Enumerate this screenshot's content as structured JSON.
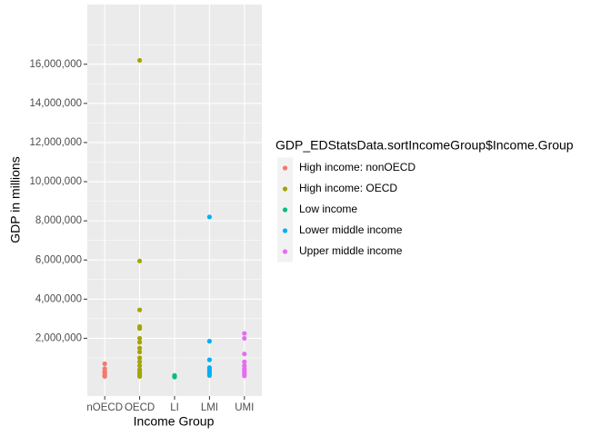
{
  "chart_data": {
    "type": "scatter",
    "x_label": "Income Group",
    "y_label": "GDP in millions",
    "legend_title": "GDP_EDStatsData.sortIncomeGroup$Income.Group",
    "categories": [
      "nOECD",
      "OECD",
      "LI",
      "LMI",
      "UMI"
    ],
    "ylim": [
      -950000,
      19050000
    ],
    "yticks": [
      {
        "value": 2000000,
        "label": "2,000,000"
      },
      {
        "value": 4000000,
        "label": "4,000,000"
      },
      {
        "value": 6000000,
        "label": "6,000,000"
      },
      {
        "value": 8000000,
        "label": "8,000,000"
      },
      {
        "value": 10000000,
        "label": "10,000,000"
      },
      {
        "value": 12000000,
        "label": "12,000,000"
      },
      {
        "value": 14000000,
        "label": "14,000,000"
      },
      {
        "value": 16000000,
        "label": "16,000,000"
      }
    ],
    "grid": true,
    "legend": "right",
    "series": [
      {
        "name": "High income: nonOECD",
        "color": "#F8766D",
        "x": [
          "nOECD",
          "nOECD",
          "nOECD",
          "nOECD",
          "nOECD",
          "nOECD"
        ],
        "values": [
          700000,
          450000,
          300000,
          200000,
          100000,
          50000
        ]
      },
      {
        "name": "High income: OECD",
        "color": "#A3A500",
        "x": [
          "OECD",
          "OECD",
          "OECD",
          "OECD",
          "OECD",
          "OECD",
          "OECD",
          "OECD",
          "OECD",
          "OECD",
          "OECD",
          "OECD",
          "OECD",
          "OECD",
          "OECD",
          "OECD",
          "OECD"
        ],
        "values": [
          16200000,
          5950000,
          3450000,
          2600000,
          2500000,
          2000000,
          1800000,
          1500000,
          1300000,
          1000000,
          800000,
          600000,
          400000,
          300000,
          200000,
          100000,
          50000
        ]
      },
      {
        "name": "Low income",
        "color": "#00BF7D",
        "x": [
          "LI",
          "LI",
          "LI"
        ],
        "values": [
          100000,
          50000,
          20000
        ]
      },
      {
        "name": "Lower middle income",
        "color": "#00B0F6",
        "x": [
          "LMI",
          "LMI",
          "LMI",
          "LMI",
          "LMI",
          "LMI",
          "LMI",
          "LMI"
        ],
        "values": [
          8200000,
          1850000,
          900000,
          500000,
          400000,
          300000,
          200000,
          100000
        ]
      },
      {
        "name": "Upper middle income",
        "color": "#E76BF3",
        "x": [
          "UMI",
          "UMI",
          "UMI",
          "UMI",
          "UMI",
          "UMI",
          "UMI",
          "UMI",
          "UMI",
          "UMI"
        ],
        "values": [
          2250000,
          2000000,
          1200000,
          800000,
          600000,
          450000,
          350000,
          250000,
          150000,
          80000
        ]
      }
    ]
  }
}
